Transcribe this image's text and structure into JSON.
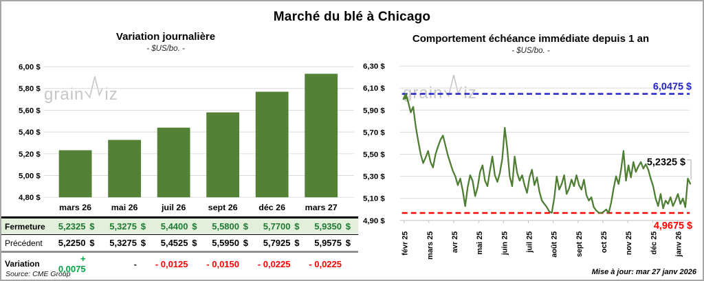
{
  "page": {
    "title": "Marché du blé à Chicago",
    "source_note": "Source: CME Group",
    "update_note": "Mise à jour: mar 27 janv 2026",
    "watermark": {
      "part1": "grain",
      "part2": "iz",
      "logo_icon": "zigzag-w-icon"
    },
    "currency": "$"
  },
  "colors": {
    "bar_green": "#538135",
    "line_green": "#4e7e32",
    "max_blue": "#2222cc",
    "min_red": "#ff0000",
    "gridline": "#d9d9d9",
    "axisline": "#bfbfbf",
    "leader_gray": "#a6a6a6",
    "close_row_bg": "#e2efda",
    "close_value_green": "#1e7a33",
    "variation_up_green": "#00a344",
    "variation_down_red": "#ff0000",
    "watermark_gray": "#c0c0c0"
  },
  "chart_data": [
    {
      "type": "bar",
      "title": "Variation journalière",
      "subtitle": "- $US/bo. -",
      "categories": [
        "mars 26",
        "mai 26",
        "juil 26",
        "sept 26",
        "déc 26",
        "mars 27"
      ],
      "values": [
        5.2325,
        5.3275,
        5.44,
        5.58,
        5.77,
        5.935
      ],
      "ylim": [
        4.8,
        6.0
      ],
      "yticks": [
        6.0,
        5.8,
        5.6,
        5.4,
        5.2,
        5.0,
        4.8
      ],
      "ytick_labels": [
        "6,00 $",
        "5,80 $",
        "5,60 $",
        "5,40 $",
        "5,20 $",
        "5,00 $",
        "4,80 $"
      ],
      "grid": true,
      "legend": "none"
    },
    {
      "type": "line",
      "title": "Comportement échéance immédiate depuis 1 an",
      "subtitle": "- $US/bo. -",
      "ylim": [
        4.9,
        6.3
      ],
      "yticks": [
        6.3,
        6.1,
        5.9,
        5.7,
        5.5,
        5.3,
        5.1,
        4.9
      ],
      "ytick_labels": [
        "6,30 $",
        "6,10 $",
        "5,90 $",
        "5,70 $",
        "5,50 $",
        "5,30 $",
        "5,10 $",
        "4,90 $"
      ],
      "xtick_labels": [
        "févr 25",
        "mars 25",
        "avr 25",
        "mai 25",
        "juin 25",
        "juil 25",
        "août 25",
        "sept 25",
        "oct 25",
        "nov 25",
        "déc 25",
        "janv 26"
      ],
      "max_line": {
        "value": 6.0475,
        "label": "6,0475 $",
        "style": "dashed-blue"
      },
      "min_line": {
        "value": 4.9675,
        "label": "4,9675 $",
        "style": "dashed-red"
      },
      "last_point": {
        "value": 5.2325,
        "label": "5,2325 $"
      },
      "grid": true,
      "legend": "none",
      "values": [
        6.0,
        6.0475,
        5.97,
        5.88,
        5.93,
        5.75,
        5.62,
        5.5,
        5.42,
        5.47,
        5.53,
        5.43,
        5.38,
        5.5,
        5.57,
        5.63,
        5.67,
        5.58,
        5.49,
        5.42,
        5.35,
        5.3,
        5.22,
        5.28,
        5.17,
        5.03,
        5.2,
        5.31,
        5.26,
        5.12,
        5.2,
        5.34,
        5.4,
        5.26,
        5.21,
        5.35,
        5.48,
        5.31,
        5.25,
        5.33,
        5.46,
        5.74,
        5.55,
        5.3,
        5.21,
        5.48,
        5.33,
        5.26,
        5.31,
        5.22,
        5.15,
        5.29,
        5.36,
        5.22,
        5.29,
        5.16,
        5.08,
        5.05,
        5.02,
        4.98,
        4.97,
        5.1,
        5.3,
        5.18,
        5.23,
        5.31,
        5.14,
        5.19,
        5.27,
        5.21,
        5.31,
        5.22,
        5.18,
        5.27,
        5.13,
        5.08,
        5.11,
        5.02,
        4.99,
        4.97,
        4.9675,
        4.98,
        5.0,
        4.9675,
        5.06,
        5.19,
        5.3,
        5.23,
        5.36,
        5.53,
        5.26,
        5.4,
        5.29,
        5.43,
        5.34,
        5.39,
        5.43,
        5.37,
        5.41,
        5.36,
        5.28,
        5.21,
        5.1,
        5.03,
        5.14,
        5.01,
        5.08,
        5.05,
        5.11,
        5.03,
        5.08,
        5.14,
        5.05,
        5.1,
        5.02,
        5.28,
        5.2325
      ]
    }
  ],
  "table": {
    "rows": [
      {
        "label": "Fermeture",
        "values": [
          "5,2325",
          "5,3275",
          "5,4400",
          "5,5800",
          "5,7700",
          "5,9350"
        ]
      },
      {
        "label": "Précédent",
        "values": [
          "5,2250",
          "5,3275",
          "5,4525",
          "5,5950",
          "5,7925",
          "5,9575"
        ]
      },
      {
        "label": "Variation",
        "values": [
          "+ 0,0075",
          "-",
          "- 0,0125",
          "- 0,0150",
          "- 0,0225",
          "- 0,0225"
        ],
        "tones": [
          "up",
          "flat",
          "down",
          "down",
          "down",
          "down"
        ]
      }
    ]
  }
}
